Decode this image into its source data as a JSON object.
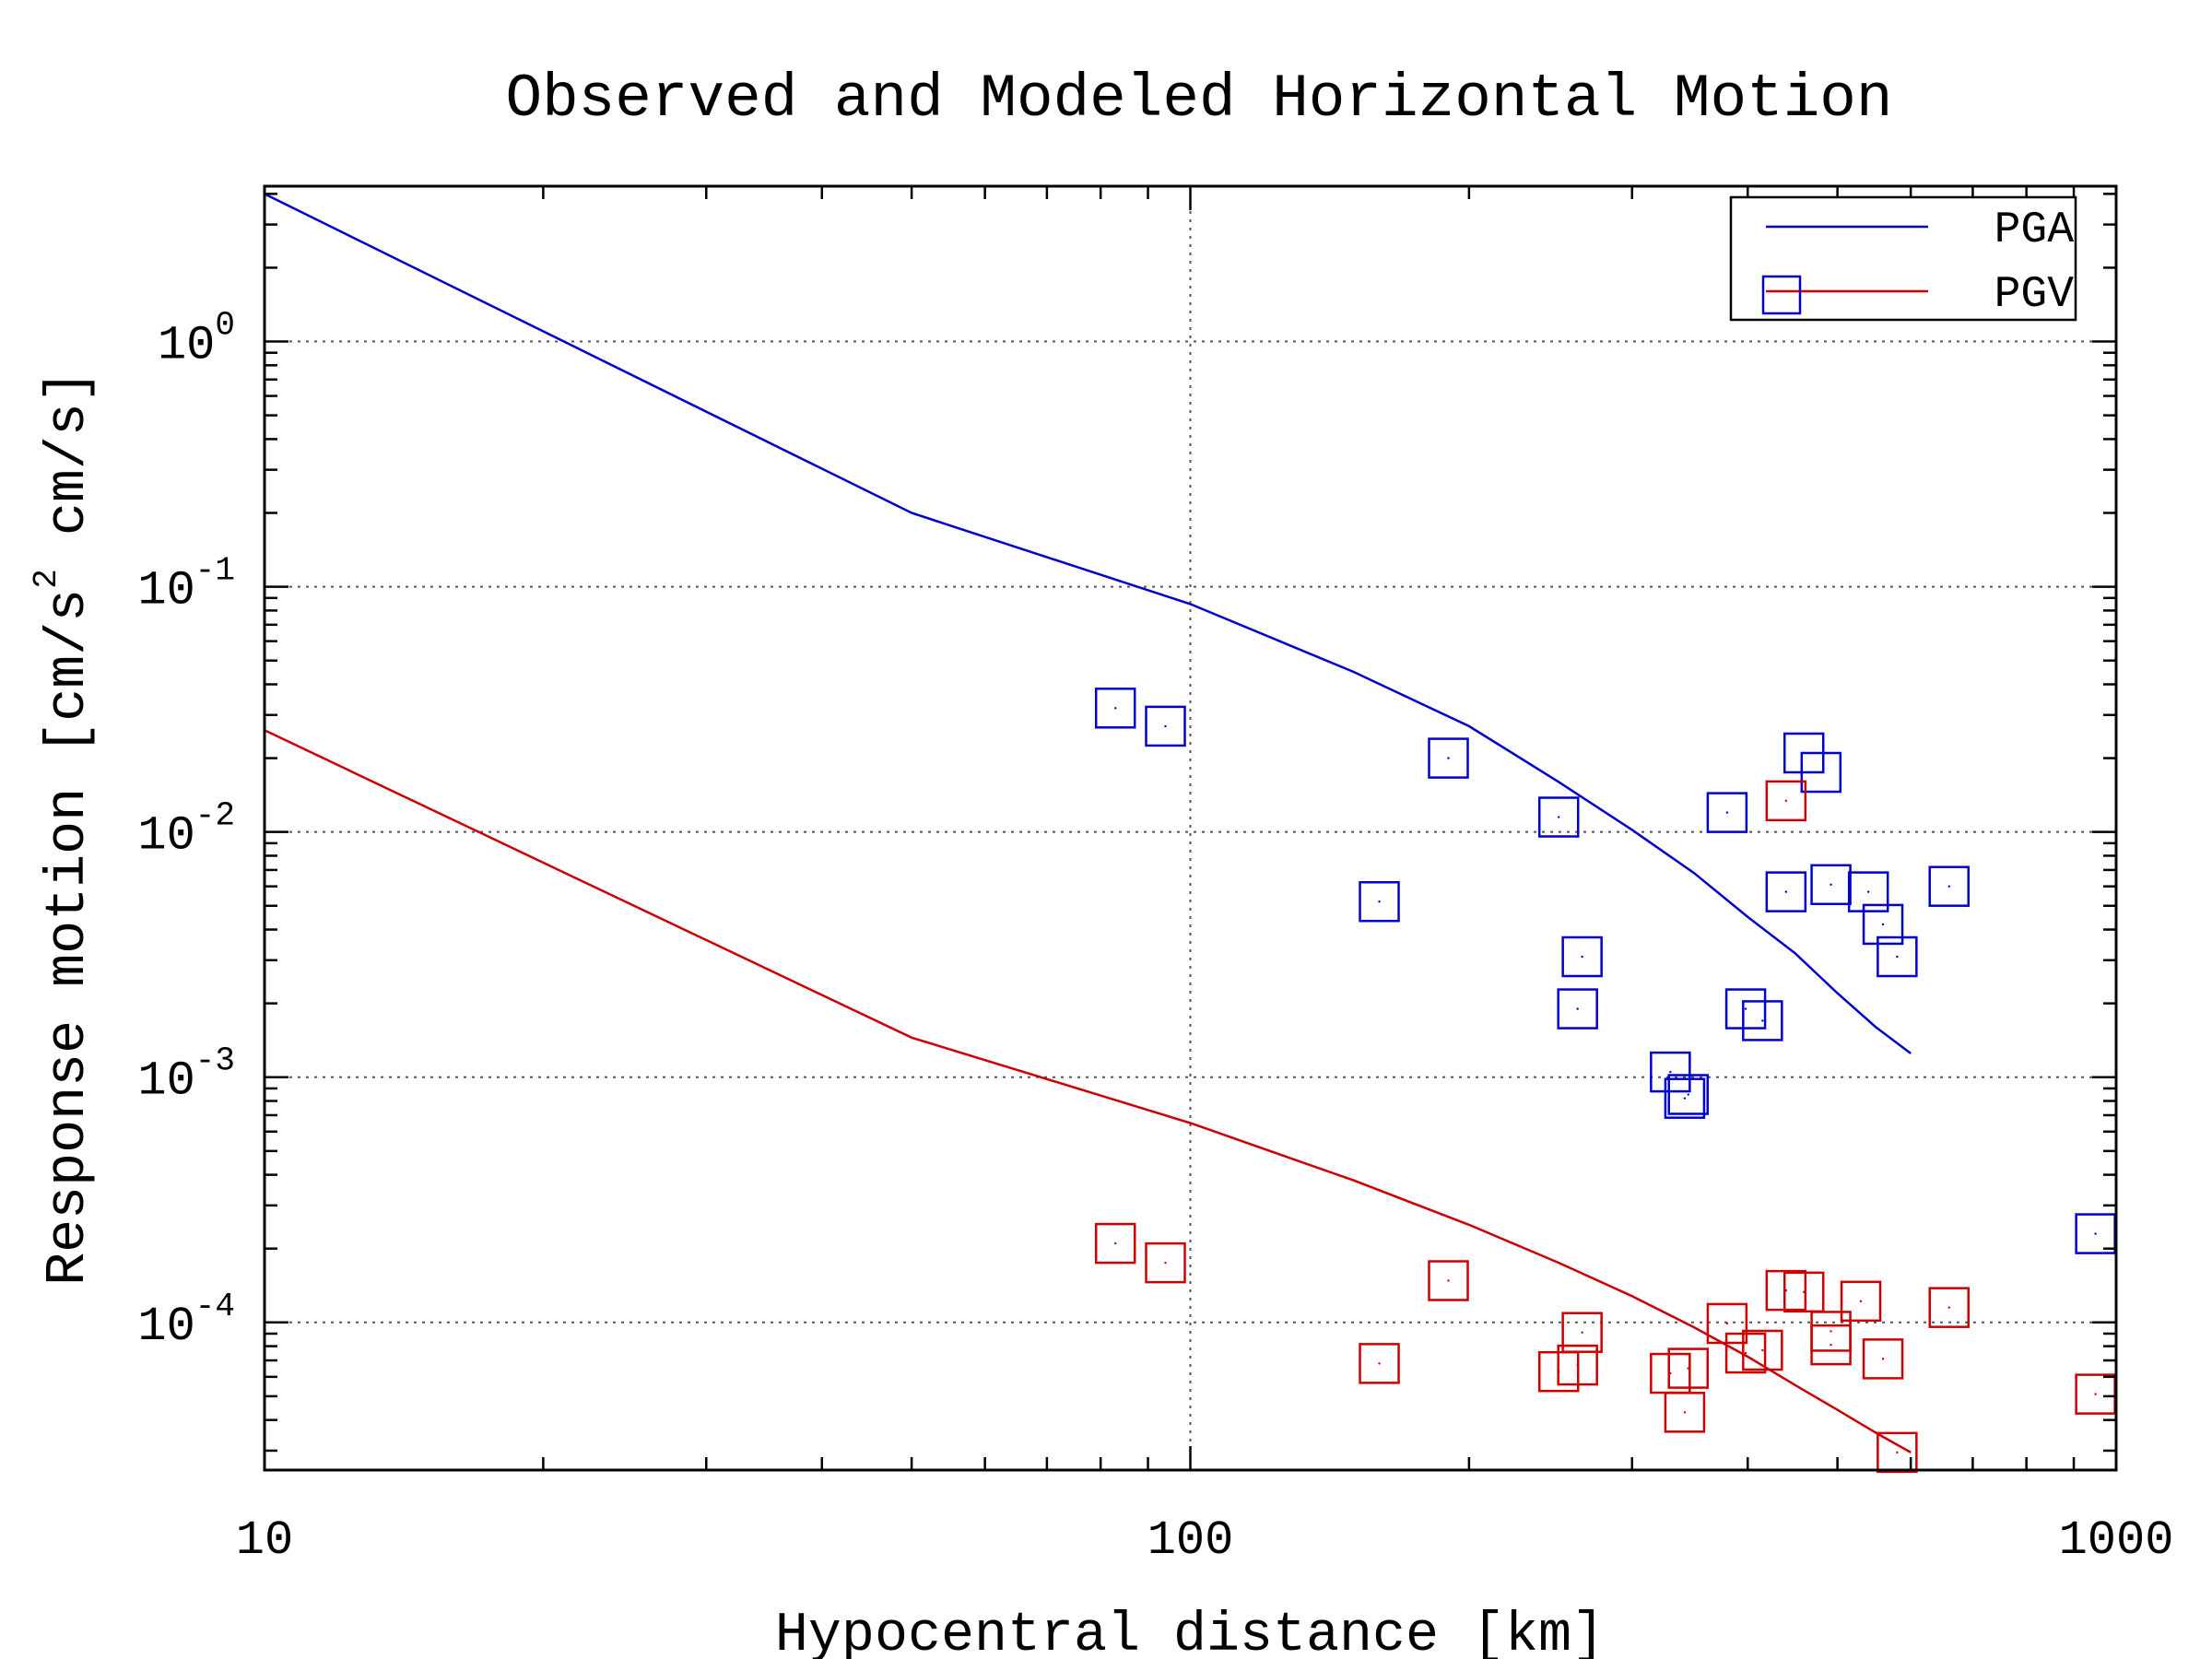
{
  "chart_data": {
    "type": "scatter",
    "title": "Observed and Modeled Horizontal Motion",
    "xlabel": "Hypocentral distance [km]",
    "ylabel": {
      "prefix": "Response motion [cm/s",
      "sup": "2",
      "suffix": "  cm/s]"
    },
    "xscale": "log",
    "yscale": "log",
    "xlim": [
      10,
      1000
    ],
    "ylim": [
      2.5e-05,
      4.3
    ],
    "grid": true,
    "legend_position": "top-right",
    "x_ticks": [
      {
        "value": 10,
        "label": "10"
      },
      {
        "value": 100,
        "label": "100"
      },
      {
        "value": 1000,
        "label": "1000"
      }
    ],
    "y_ticks": [
      {
        "value": 0.0001,
        "base": "10",
        "exp": "-4"
      },
      {
        "value": 0.001,
        "base": "10",
        "exp": "-3"
      },
      {
        "value": 0.01,
        "base": "10",
        "exp": "-2"
      },
      {
        "value": 0.1,
        "base": "10",
        "exp": "-1"
      },
      {
        "value": 1,
        "base": "10",
        "exp": "0"
      }
    ],
    "series": [
      {
        "name": "PGA",
        "color": "#0000cc",
        "line": {
          "x": [
            10,
            50,
            100,
            150,
            200,
            250,
            300,
            350,
            400,
            450,
            500,
            550,
            600
          ],
          "y": [
            4.0,
            0.2,
            0.085,
            0.045,
            0.027,
            0.016,
            0.0102,
            0.0068,
            0.0045,
            0.0032,
            0.0022,
            0.0016,
            0.00125
          ]
        },
        "points": {
          "x": [
            83,
            94,
            160,
            190,
            250,
            265,
            262,
            380,
            398,
            415,
            440,
            460,
            492,
            480,
            540,
            560,
            580,
            660,
            330,
            345,
            342,
            950
          ],
          "y": [
            0.032,
            0.027,
            0.0052,
            0.02,
            0.0115,
            0.0031,
            0.0019,
            0.012,
            0.0019,
            0.0017,
            0.0057,
            0.021,
            0.0061,
            0.0175,
            0.0057,
            0.0042,
            0.0031,
            0.006,
            0.00105,
            0.00085,
            0.00082,
            0.00023
          ]
        }
      },
      {
        "name": "PGV",
        "color": "#cc0000",
        "line": {
          "x": [
            10,
            50,
            100,
            150,
            200,
            250,
            300,
            350,
            400,
            450,
            500,
            550,
            600
          ],
          "y": [
            0.026,
            0.00145,
            0.00065,
            0.00038,
            0.00025,
            0.000175,
            0.000128,
            9.55e-05,
            7.25e-05,
            5.55e-05,
            4.4e-05,
            3.55e-05,
            2.95e-05
          ]
        },
        "points": {
          "x": [
            83,
            94,
            160,
            190,
            250,
            265,
            262,
            330,
            345,
            342,
            380,
            398,
            415,
            440,
            460,
            492,
            492,
            530,
            560,
            580,
            660,
            950
          ],
          "y": [
            0.00021,
            0.000175,
            6.8e-05,
            0.000148,
            6.3e-05,
            9.1e-05,
            6.7e-05,
            6.2e-05,
            6.5e-05,
            4.3e-05,
            9.9e-05,
            7.5e-05,
            7.7e-05,
            0.000135,
            0.000133,
            9.2e-05,
            8.1e-05,
            0.000122,
            7.1e-05,
            2.95e-05,
            0.000115,
            5.1e-05
          ]
        }
      }
    ],
    "extra_points": [
      {
        "x": 440,
        "y": 0.0134,
        "color": "#cc0000"
      }
    ],
    "legend": [
      {
        "label": "PGA",
        "color": "#0000cc"
      },
      {
        "label": "PGV",
        "color": "#cc0000"
      }
    ]
  }
}
